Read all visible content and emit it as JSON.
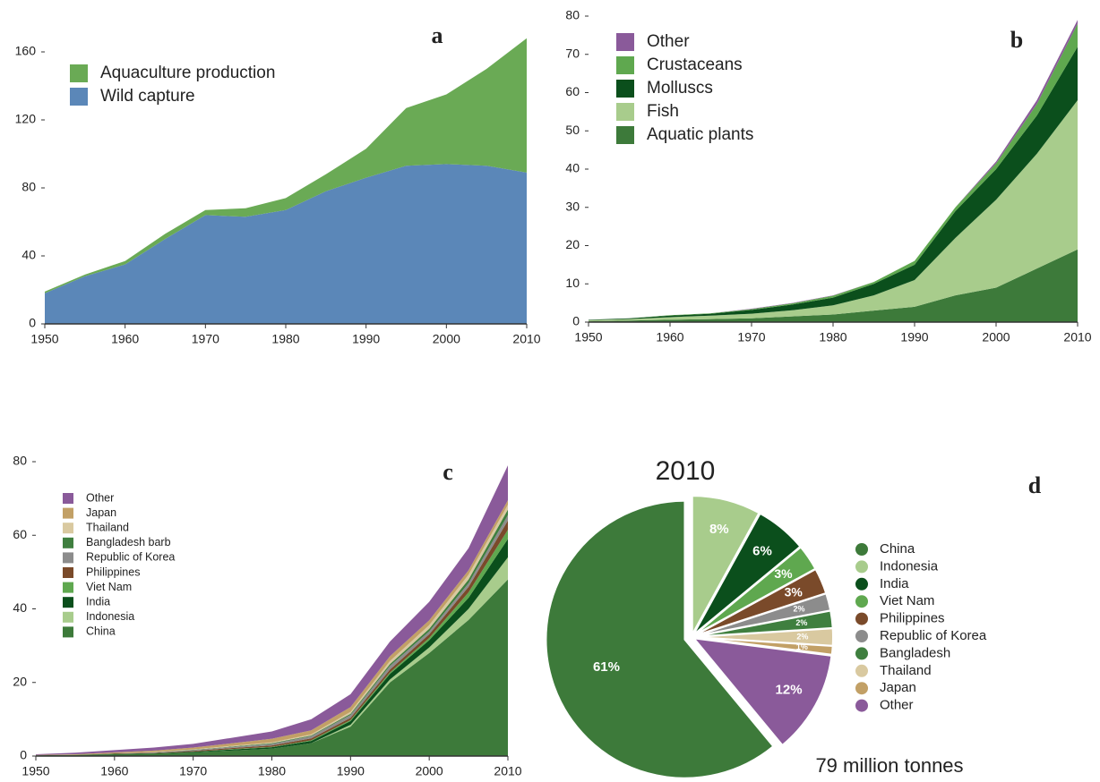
{
  "chart_data": [
    {
      "type": "area",
      "panel": "a",
      "stacked": true,
      "legend": "upper left",
      "x": [
        1950,
        1955,
        1960,
        1965,
        1970,
        1975,
        1980,
        1985,
        1990,
        1995,
        2000,
        2005,
        2010
      ],
      "series": [
        {
          "name": "Wild capture",
          "color": "#5b87b8",
          "values": [
            18,
            28,
            35,
            50,
            64,
            63,
            67,
            78,
            86,
            93,
            94,
            93,
            89
          ]
        },
        {
          "name": "Aquaculture production",
          "color": "#6aaa55",
          "values": [
            1,
            1,
            2,
            3,
            3,
            5,
            7,
            10,
            17,
            34,
            41,
            57,
            79
          ]
        }
      ],
      "xlim": [
        1950,
        2010
      ],
      "xticks": [
        1950,
        1960,
        1970,
        1980,
        1990,
        2000,
        2010
      ],
      "ylim": [
        0,
        175
      ],
      "yticks": [
        0,
        40,
        80,
        120,
        160
      ]
    },
    {
      "type": "area",
      "panel": "b",
      "stacked": true,
      "legend": "upper left",
      "x": [
        1950,
        1955,
        1960,
        1965,
        1970,
        1975,
        1980,
        1985,
        1990,
        1995,
        2000,
        2005,
        2010
      ],
      "series": [
        {
          "name": "Aquatic plants",
          "color": "#3d7a3a",
          "values": [
            0.2,
            0.4,
            0.6,
            0.8,
            1,
            1.5,
            2,
            3,
            4,
            7,
            9,
            14,
            19
          ]
        },
        {
          "name": "Fish",
          "color": "#a8cc8c",
          "values": [
            0.3,
            0.4,
            0.7,
            0.9,
            1.2,
            1.6,
            2.4,
            4,
            7,
            15,
            23,
            30,
            39
          ]
        },
        {
          "name": "Molluscs",
          "color": "#0b4f1c",
          "values": [
            0.1,
            0.2,
            0.4,
            0.5,
            1,
            1.5,
            2,
            3,
            4,
            7,
            8,
            10,
            14
          ]
        },
        {
          "name": "Crustaceans",
          "color": "#5fa84f",
          "values": [
            0,
            0,
            0.1,
            0.1,
            0.2,
            0.3,
            0.5,
            0.5,
            1,
            1,
            1.5,
            3,
            6
          ]
        },
        {
          "name": "Other",
          "color": "#8a5a9a",
          "values": [
            0,
            0,
            0,
            0,
            0.1,
            0.1,
            0.1,
            0,
            0,
            0,
            0.5,
            1,
            1
          ]
        }
      ],
      "xlim": [
        1950,
        2010
      ],
      "xticks": [
        1950,
        1960,
        1970,
        1980,
        1990,
        2000,
        2010
      ],
      "ylim": [
        0,
        80
      ],
      "yticks": [
        0,
        10,
        20,
        30,
        40,
        50,
        60,
        70,
        80
      ]
    },
    {
      "type": "area",
      "panel": "c",
      "stacked": true,
      "legend": "upper left",
      "x": [
        1950,
        1955,
        1960,
        1965,
        1970,
        1975,
        1980,
        1985,
        1990,
        1995,
        2000,
        2005,
        2010
      ],
      "series": [
        {
          "name": "China",
          "color": "#3d7a3a",
          "values": [
            0.2,
            0.3,
            0.5,
            0.7,
            1,
            1.5,
            2,
            3.5,
            8,
            20,
            28,
            37,
            48
          ]
        },
        {
          "name": "Indonesia",
          "color": "#a8cc8c",
          "values": [
            0,
            0,
            0,
            0,
            0,
            0,
            0,
            0,
            0.5,
            0.8,
            1.5,
            3,
            6
          ]
        },
        {
          "name": "India",
          "color": "#0b4f1c",
          "values": [
            0,
            0,
            0.1,
            0.1,
            0.2,
            0.3,
            0.4,
            0.6,
            1,
            1.5,
            2,
            3,
            5
          ]
        },
        {
          "name": "Viet Nam",
          "color": "#5fa84f",
          "values": [
            0,
            0,
            0,
            0,
            0,
            0.1,
            0.1,
            0.2,
            0.3,
            0.4,
            0.6,
            1.5,
            2.5
          ]
        },
        {
          "name": "Philippines",
          "color": "#7a4a2a",
          "values": [
            0,
            0,
            0.1,
            0.1,
            0.2,
            0.3,
            0.4,
            0.5,
            0.6,
            0.8,
            1,
            1.5,
            2.5
          ]
        },
        {
          "name": "Republic of Korea",
          "color": "#8c8c8c",
          "values": [
            0,
            0,
            0,
            0.1,
            0.2,
            0.3,
            0.4,
            0.6,
            0.8,
            1,
            0.8,
            1,
            1.5
          ]
        },
        {
          "name": "Bangladesh barb",
          "color": "#3f7f3f",
          "values": [
            0,
            0,
            0,
            0,
            0.1,
            0.1,
            0.2,
            0.2,
            0.3,
            0.5,
            0.7,
            1,
            1.5
          ]
        },
        {
          "name": "Thailand",
          "color": "#d9c9a0",
          "values": [
            0,
            0,
            0,
            0.1,
            0.1,
            0.2,
            0.2,
            0.3,
            0.5,
            0.8,
            1,
            1.3,
            1.3
          ]
        },
        {
          "name": "Japan",
          "color": "#c2a066",
          "values": [
            0.1,
            0.2,
            0.3,
            0.4,
            0.5,
            0.7,
            1,
            1.1,
            1.3,
            1.3,
            1.3,
            1.2,
            1.2
          ]
        },
        {
          "name": "Other",
          "color": "#8a5a9a",
          "values": [
            0.2,
            0.4,
            0.6,
            0.8,
            1,
            1.5,
            2,
            3,
            3.5,
            4,
            5,
            6,
            9.5
          ]
        }
      ],
      "xlim": [
        1950,
        2010
      ],
      "xticks": [
        1950,
        1960,
        1970,
        1980,
        1990,
        2000,
        2010
      ],
      "ylim": [
        0,
        80
      ],
      "yticks": [
        0,
        20,
        40,
        60,
        80
      ]
    },
    {
      "type": "pie",
      "panel": "d",
      "title": "2010",
      "subtitle": "79 million tonnes",
      "legend": "right",
      "categories": [
        "China",
        "Indonesia",
        "India",
        "Viet Nam",
        "Philippines",
        "Republic of Korea",
        "Bangladesh",
        "Thailand",
        "Japan",
        "Other"
      ],
      "values": [
        61,
        8,
        6,
        3,
        3,
        2,
        2,
        2,
        1,
        12
      ],
      "value_labels": [
        "61%",
        "8%",
        "6%",
        "3%",
        "3%",
        "2%",
        "2%",
        "2%",
        "1%",
        "12%"
      ],
      "colors": [
        "#3d7a3a",
        "#a8cc8c",
        "#0b4f1c",
        "#5fa84f",
        "#7a4a2a",
        "#8c8c8c",
        "#3f7f3f",
        "#d9c9a0",
        "#c2a066",
        "#8a5a9a"
      ]
    }
  ]
}
